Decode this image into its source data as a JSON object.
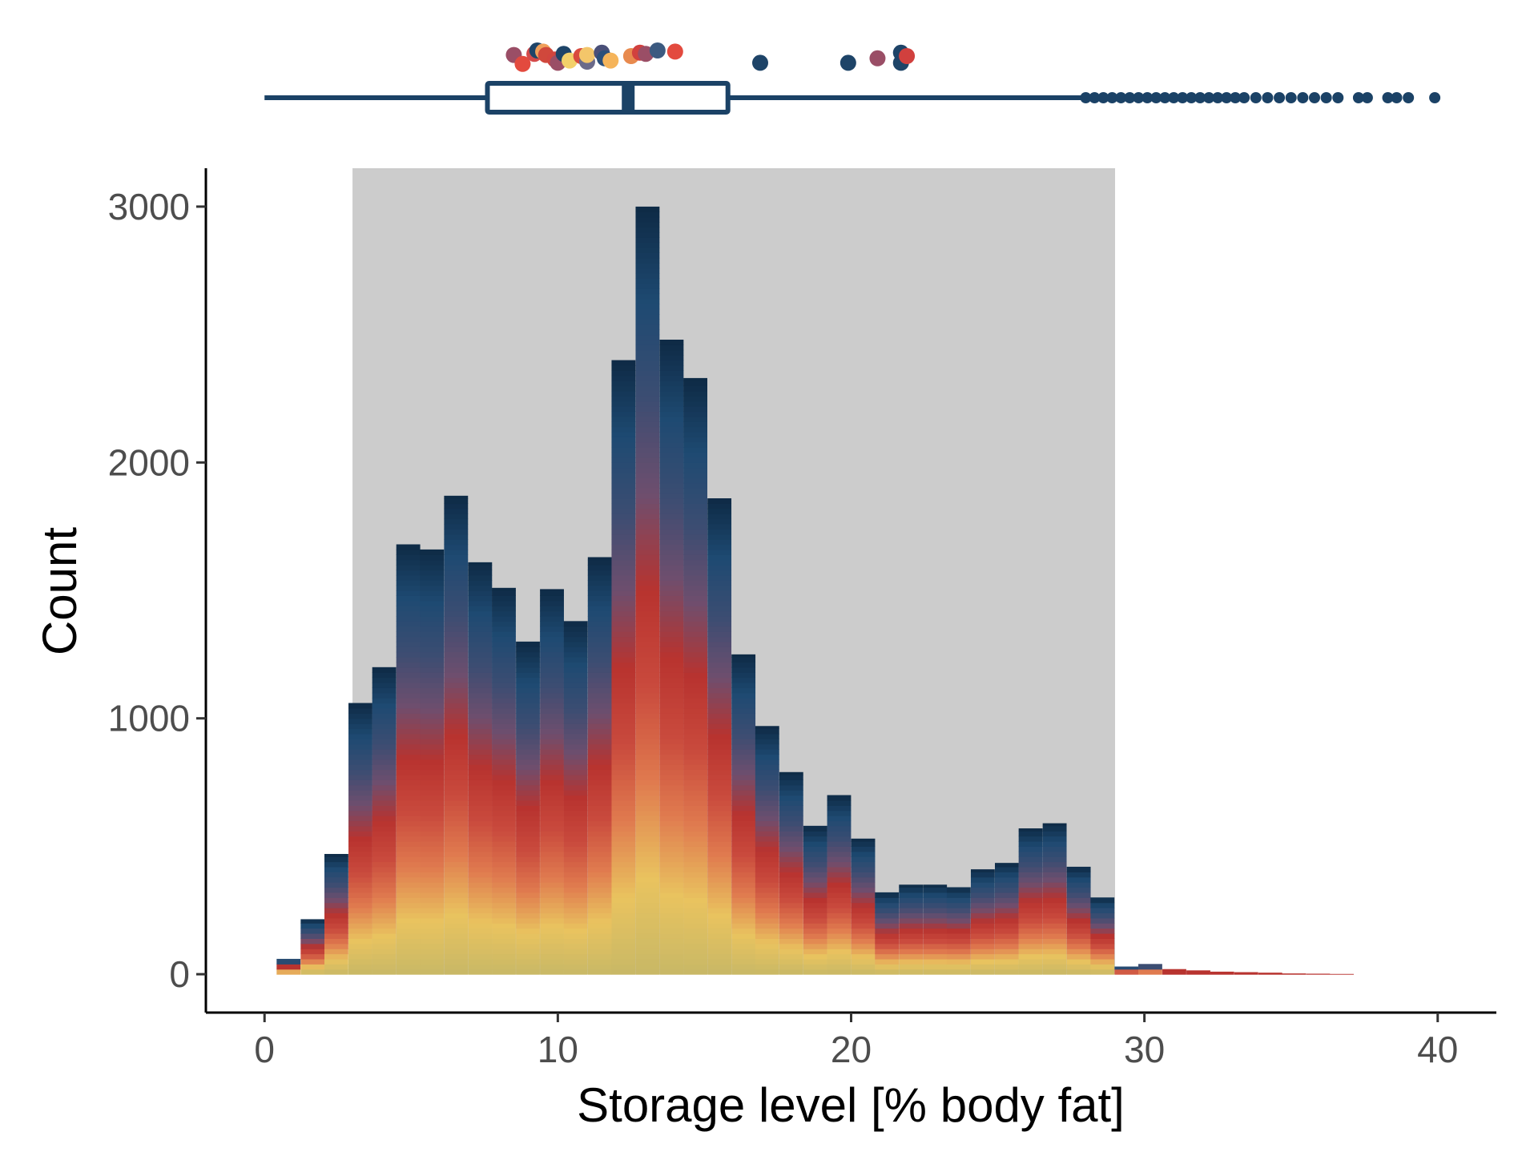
{
  "chart_data": [
    {
      "type": "bar",
      "subtype": "stacked-histogram",
      "title": "",
      "xlabel": "Storage level [% body fat]",
      "ylabel": "Count",
      "xlim": [
        -2,
        42
      ],
      "ylim": [
        -150,
        3150
      ],
      "x_ticks": [
        0,
        10,
        20,
        30,
        40
      ],
      "y_ticks": [
        0,
        1000,
        2000,
        3000
      ],
      "x_tick_labels": [
        "0",
        "10",
        "20",
        "30",
        "40"
      ],
      "y_tick_labels": [
        "0",
        "1000",
        "2000",
        "3000"
      ],
      "grid": false,
      "legend": "none",
      "bin_width": 0.815,
      "bin_centers": [
        0.82,
        1.64,
        2.45,
        3.27,
        4.08,
        4.9,
        5.71,
        6.53,
        7.35,
        8.16,
        8.98,
        9.8,
        10.61,
        11.43,
        12.24,
        13.06,
        13.88,
        14.69,
        15.51,
        16.33,
        17.14,
        17.96,
        18.78,
        19.59,
        20.41,
        21.22,
        22.04,
        22.86,
        23.67,
        24.49,
        25.31,
        26.12,
        26.94,
        27.76,
        28.57,
        29.39,
        30.2,
        31.02,
        31.84,
        32.65,
        33.47,
        34.29,
        35.1,
        35.92,
        36.73
      ],
      "bin_totals": [
        60,
        215,
        470,
        1060,
        1200,
        1680,
        1660,
        1870,
        1610,
        1510,
        1300,
        1505,
        1380,
        1630,
        2400,
        3000,
        2480,
        2330,
        1860,
        1250,
        970,
        790,
        580,
        700,
        530,
        320,
        350,
        350,
        340,
        410,
        435,
        570,
        590,
        420,
        300,
        30,
        40,
        20,
        15,
        10,
        8,
        6,
        3,
        2,
        1
      ],
      "fill_gradient": [
        "#c8b866",
        "#e9c35f",
        "#e07b4f",
        "#c94a3d",
        "#b8332f",
        "#6e4e6e",
        "#3c4d72",
        "#1e4a72",
        "#0e2a45"
      ],
      "highlight_band": {
        "x": [
          3.0,
          29.0
        ],
        "color": "#cccccc"
      }
    },
    {
      "type": "boxplot",
      "orientation": "horizontal",
      "color": "#1b4266",
      "whisker_low": 0,
      "q1": 7.6,
      "median": 12.4,
      "q3": 15.8,
      "whisker_high": 27.9,
      "outliers": [
        28.0,
        28.3,
        28.6,
        28.9,
        29.2,
        29.5,
        29.8,
        30.1,
        30.4,
        30.7,
        31.0,
        31.3,
        31.6,
        31.9,
        32.2,
        32.5,
        32.8,
        33.1,
        33.4,
        33.8,
        34.2,
        34.6,
        35.0,
        35.4,
        35.8,
        36.2,
        36.6,
        37.3,
        37.6,
        38.3,
        38.6,
        39.0,
        39.9
      ]
    },
    {
      "type": "scatter",
      "role": "individual means",
      "points": [
        {
          "x": 8.5,
          "jitter": 0.1,
          "color": "#9a4e66"
        },
        {
          "x": 8.8,
          "jitter": -0.7,
          "color": "#e34a3e"
        },
        {
          "x": 9.2,
          "jitter": 0.2,
          "color": "#d44a4a"
        },
        {
          "x": 9.3,
          "jitter": 0.5,
          "color": "#1e4468"
        },
        {
          "x": 9.5,
          "jitter": 0.4,
          "color": "#f0a05a"
        },
        {
          "x": 9.6,
          "jitter": 0.1,
          "color": "#d0483c"
        },
        {
          "x": 9.9,
          "jitter": -0.3,
          "color": "#d1453e"
        },
        {
          "x": 10.0,
          "jitter": -0.6,
          "color": "#9a4e66"
        },
        {
          "x": 10.2,
          "jitter": 0.2,
          "color": "#1e4468"
        },
        {
          "x": 10.4,
          "jitter": -0.4,
          "color": "#f3d16a"
        },
        {
          "x": 10.8,
          "jitter": 0.0,
          "color": "#d94a3e"
        },
        {
          "x": 11.0,
          "jitter": -0.5,
          "color": "#6a6a8a"
        },
        {
          "x": 11.0,
          "jitter": 0.1,
          "color": "#f3c66a"
        },
        {
          "x": 11.5,
          "jitter": 0.3,
          "color": "#4a5078"
        },
        {
          "x": 11.6,
          "jitter": -0.2,
          "color": "#2b4f7a"
        },
        {
          "x": 11.8,
          "jitter": -0.4,
          "color": "#f5b45a"
        },
        {
          "x": 12.5,
          "jitter": 0.0,
          "color": "#e88a4e"
        },
        {
          "x": 12.8,
          "jitter": 0.3,
          "color": "#d1403e"
        },
        {
          "x": 13.0,
          "jitter": 0.2,
          "color": "#9a4e66"
        },
        {
          "x": 13.4,
          "jitter": 0.5,
          "color": "#3c5a80"
        },
        {
          "x": 14.0,
          "jitter": 0.4,
          "color": "#e34a3e"
        },
        {
          "x": 16.9,
          "jitter": -0.6,
          "color": "#1e4468"
        },
        {
          "x": 19.9,
          "jitter": -0.6,
          "color": "#1e4468"
        },
        {
          "x": 20.9,
          "jitter": -0.2,
          "color": "#9a4e66"
        },
        {
          "x": 21.7,
          "jitter": 0.3,
          "color": "#1e4468"
        },
        {
          "x": 21.7,
          "jitter": -0.6,
          "color": "#1e4468"
        },
        {
          "x": 21.9,
          "jitter": 0.0,
          "color": "#d1403e"
        }
      ]
    }
  ]
}
